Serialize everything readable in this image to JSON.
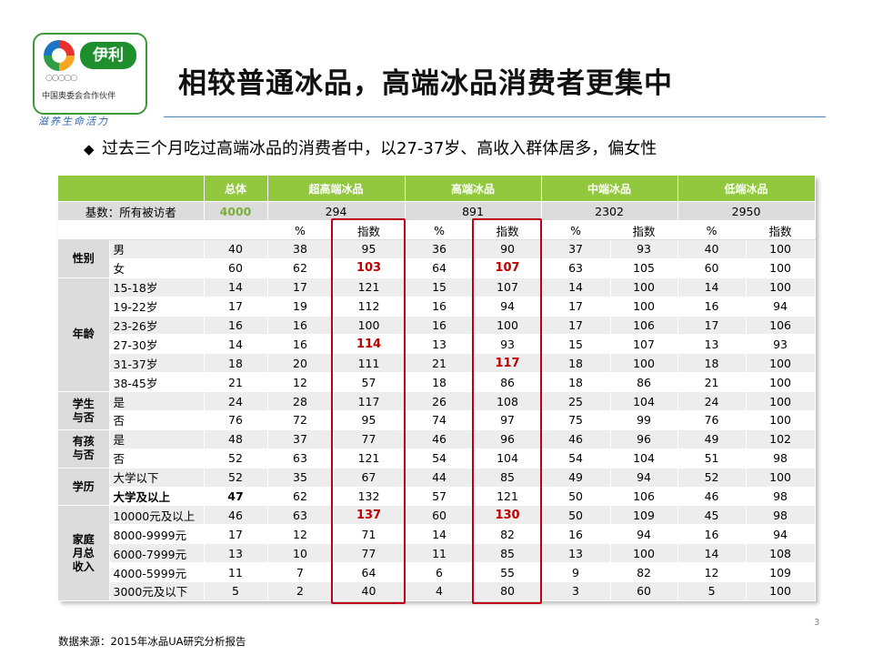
{
  "logo": {
    "brand": "伊利",
    "rings": "○○○○○",
    "partner": "中国奥委会合作伙伴",
    "slogan": "滋养生命活力"
  },
  "title": "相较普通冰品，高端冰品消费者更集中",
  "bullet": "过去三个月吃过高端冰品的消费者中，以27-37岁、高收入群体居多，偏女性",
  "bullet_mark": "◆",
  "table": {
    "header": [
      "",
      "",
      "总体",
      "超高端冰品",
      "高端冰品",
      "中端冰品",
      "低端冰品"
    ],
    "base": {
      "label": "基数：所有被访者",
      "total": "4000",
      "values": [
        "294",
        "891",
        "2302",
        "2950"
      ]
    },
    "subheader": [
      "%",
      "指数",
      "%",
      "指数",
      "%",
      "指数",
      "%",
      "指数"
    ],
    "groups": [
      {
        "name": "性别",
        "rows": [
          {
            "label": "男",
            "total": "40",
            "cells": [
              "38",
              "95",
              "36",
              "90",
              "37",
              "93",
              "40",
              "100"
            ],
            "hl": []
          },
          {
            "label": "女",
            "total": "60",
            "cells": [
              "62",
              "103",
              "64",
              "107",
              "63",
              "105",
              "60",
              "100"
            ],
            "hl": [
              1,
              3
            ]
          }
        ]
      },
      {
        "name": "年龄",
        "rows": [
          {
            "label": "15-18岁",
            "total": "14",
            "cells": [
              "17",
              "121",
              "15",
              "107",
              "14",
              "100",
              "14",
              "100"
            ],
            "hl": []
          },
          {
            "label": "19-22岁",
            "total": "17",
            "cells": [
              "19",
              "112",
              "16",
              "94",
              "17",
              "100",
              "16",
              "94"
            ],
            "hl": []
          },
          {
            "label": "23-26岁",
            "total": "16",
            "cells": [
              "16",
              "100",
              "16",
              "100",
              "17",
              "106",
              "17",
              "106"
            ],
            "hl": []
          },
          {
            "label": "27-30岁",
            "total": "14",
            "cells": [
              "16",
              "114",
              "13",
              "93",
              "15",
              "107",
              "13",
              "93"
            ],
            "hl": [
              1
            ]
          },
          {
            "label": "31-37岁",
            "total": "18",
            "cells": [
              "20",
              "111",
              "21",
              "117",
              "18",
              "100",
              "18",
              "100"
            ],
            "hl": [
              3
            ]
          },
          {
            "label": "38-45岁",
            "total": "21",
            "cells": [
              "12",
              "57",
              "18",
              "86",
              "18",
              "86",
              "21",
              "100"
            ],
            "hl": []
          }
        ]
      },
      {
        "name": "学生\n与否",
        "rows": [
          {
            "label": "是",
            "total": "24",
            "cells": [
              "28",
              "117",
              "26",
              "108",
              "25",
              "104",
              "24",
              "100"
            ],
            "hl": []
          },
          {
            "label": "否",
            "total": "76",
            "cells": [
              "72",
              "95",
              "74",
              "97",
              "75",
              "99",
              "76",
              "100"
            ],
            "hl": []
          }
        ]
      },
      {
        "name": "有孩\n与否",
        "rows": [
          {
            "label": "是",
            "total": "48",
            "cells": [
              "37",
              "77",
              "46",
              "96",
              "46",
              "96",
              "49",
              "102"
            ],
            "hl": []
          },
          {
            "label": "否",
            "total": "52",
            "cells": [
              "63",
              "121",
              "54",
              "104",
              "54",
              "104",
              "51",
              "98"
            ],
            "hl": []
          }
        ]
      },
      {
        "name": "学历",
        "rows": [
          {
            "label": "大学以下",
            "total": "52",
            "cells": [
              "35",
              "67",
              "44",
              "85",
              "49",
              "94",
              "52",
              "100"
            ],
            "hl": [],
            "bold": false
          },
          {
            "label": "大学及以上",
            "total": "47",
            "cells": [
              "62",
              "132",
              "57",
              "121",
              "50",
              "106",
              "46",
              "98"
            ],
            "hl": [],
            "bold": true
          }
        ]
      },
      {
        "name": "家庭\n月总\n收入",
        "rows": [
          {
            "label": "10000元及以上",
            "total": "46",
            "cells": [
              "63",
              "137",
              "60",
              "130",
              "50",
              "109",
              "45",
              "98"
            ],
            "hl": [
              1,
              3
            ]
          },
          {
            "label": "8000-9999元",
            "total": "17",
            "cells": [
              "12",
              "71",
              "14",
              "82",
              "16",
              "94",
              "16",
              "94"
            ],
            "hl": []
          },
          {
            "label": "6000-7999元",
            "total": "13",
            "cells": [
              "10",
              "77",
              "11",
              "85",
              "13",
              "100",
              "14",
              "108"
            ],
            "hl": []
          },
          {
            "label": "4000-5999元",
            "total": "11",
            "cells": [
              "7",
              "64",
              "6",
              "55",
              "9",
              "82",
              "12",
              "109"
            ],
            "hl": []
          },
          {
            "label": "3000元及以下",
            "total": "5",
            "cells": [
              "2",
              "40",
              "4",
              "80",
              "3",
              "60",
              "5",
              "100"
            ],
            "hl": []
          }
        ]
      }
    ]
  },
  "colors": {
    "header_bg": "#92c83e",
    "highlight_text": "#c00000",
    "highlight_box": "#c0001a",
    "title_rule": "#4f81bd"
  },
  "page_number": "3",
  "source": "数据来源：2015年冰品UA研究分析报告"
}
